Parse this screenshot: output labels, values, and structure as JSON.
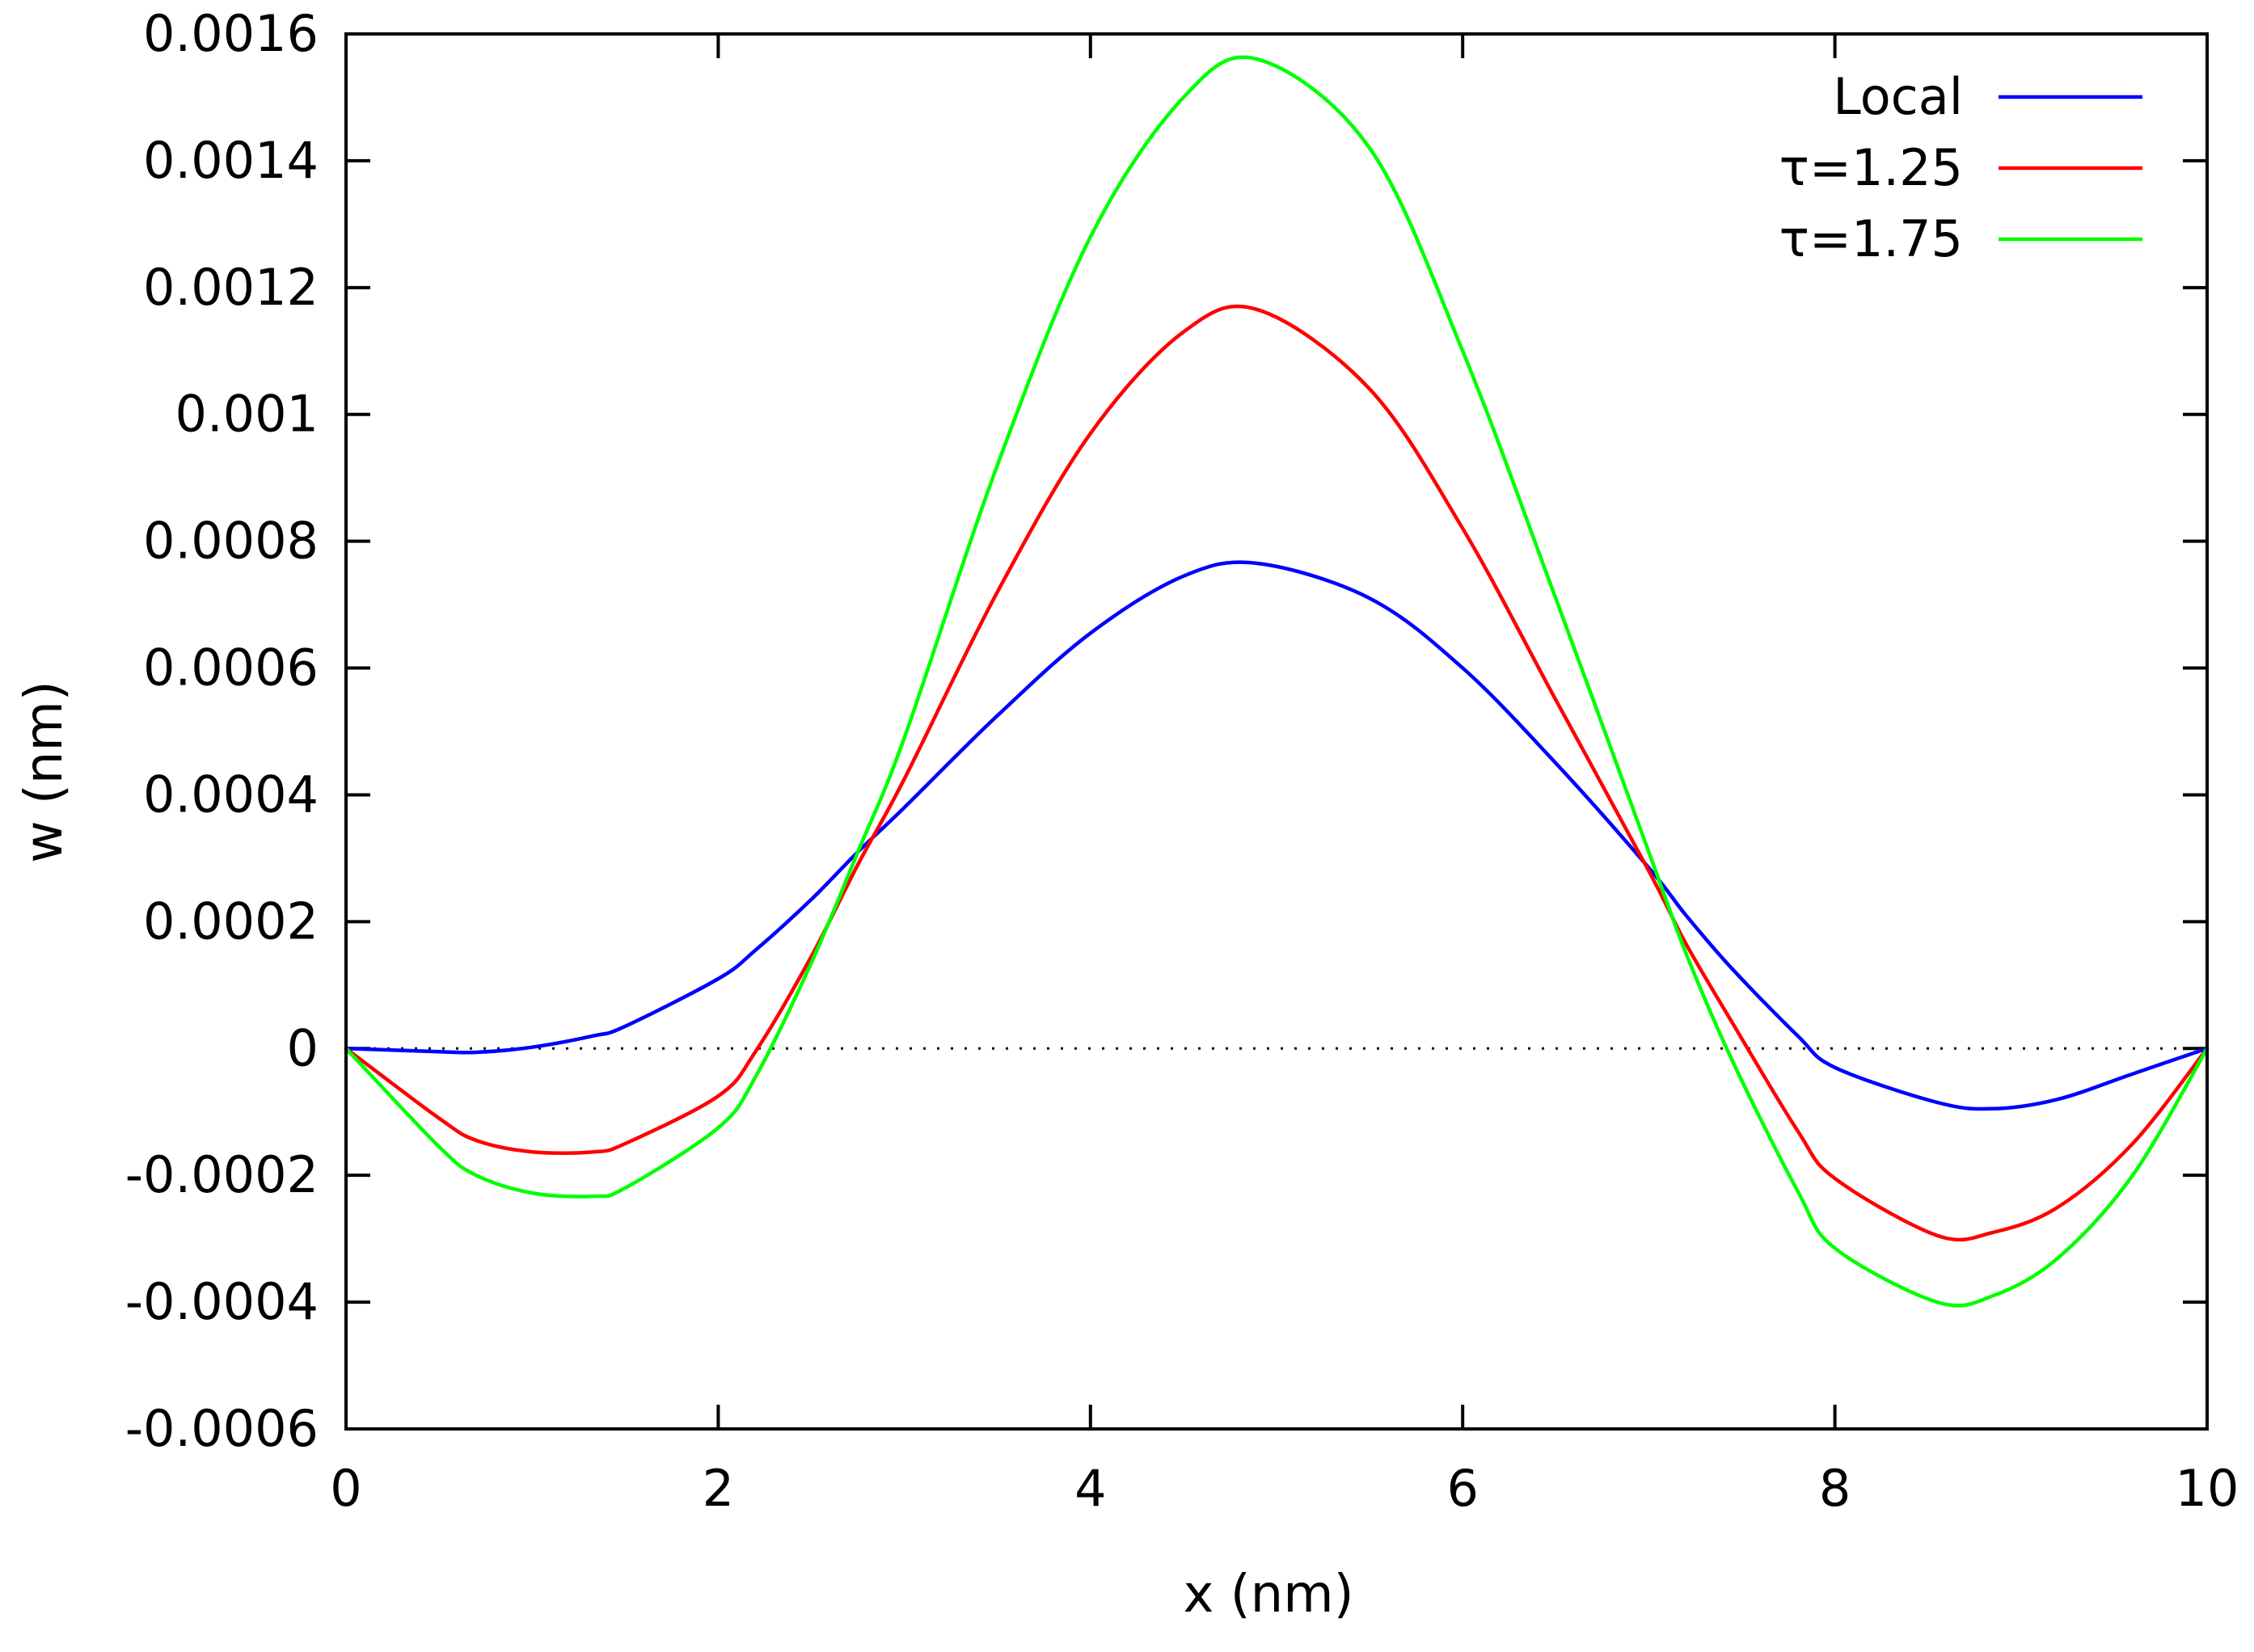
{
  "chart_data": {
    "type": "line",
    "title": "",
    "xlabel": "x (nm)",
    "ylabel": "w (nm)",
    "xlim": [
      0,
      10
    ],
    "ylim": [
      -0.0006,
      0.0016
    ],
    "xticks": [
      0,
      2,
      4,
      6,
      8,
      10
    ],
    "xtick_labels": [
      "0",
      "2",
      "4",
      "6",
      "8",
      "10"
    ],
    "yticks": [
      -0.0006,
      -0.0004,
      -0.0002,
      0,
      0.0002,
      0.0004,
      0.0006,
      0.0008,
      0.001,
      0.0012,
      0.0014,
      0.0016
    ],
    "ytick_labels": [
      "-0.0006",
      "-0.0004",
      "-0.0002",
      "0",
      "0.0002",
      "0.0004",
      "0.0006",
      "0.0008",
      "0.001",
      "0.0012",
      "0.0014",
      "0.0016"
    ],
    "zero_line": "dotted",
    "grid": false,
    "legend_position": "top-right",
    "x": [
      0,
      0.5,
      0.7,
      1,
      1.33,
      1.5,
      2,
      2.2,
      2.5,
      2.75,
      3,
      3.5,
      4,
      4.5,
      4.9,
      5.5,
      6,
      6.5,
      7,
      7.2,
      7.45,
      7.8,
      8,
      8.55,
      8.85,
      9.2,
      9.6,
      10
    ],
    "series": [
      {
        "name": "Local",
        "color": "#0000ff",
        "values": [
          0,
          -5e-06,
          -6e-06,
          2e-06,
          2e-05,
          3.5e-05,
          0.00011,
          0.000155,
          0.000235,
          0.00031,
          0.00038,
          0.000525,
          0.000655,
          0.000745,
          0.000765,
          0.00071,
          0.0006,
          0.00045,
          0.000285,
          0.00021,
          0.000125,
          2e-05,
          -3e-05,
          -8.5e-05,
          -9.5e-05,
          -8e-05,
          -4e-05,
          0
        ]
      },
      {
        "name": "τ=1.25",
        "color": "#ff0000",
        "values": [
          0,
          -0.00011,
          -0.000145,
          -0.000163,
          -0.000163,
          -0.00015,
          -7.5e-05,
          -5e-06,
          0.000145,
          0.00029,
          0.000425,
          0.00072,
          0.00097,
          0.00113,
          0.001165,
          0.00104,
          0.00082,
          0.00055,
          0.00028,
          0.000165,
          4e-05,
          -0.00013,
          -0.000205,
          -0.000295,
          -0.00029,
          -0.00025,
          -0.00015,
          0
        ]
      },
      {
        "name": "τ=1.75",
        "color": "#00ff00",
        "values": [
          0,
          -0.000155,
          -0.0002,
          -0.000228,
          -0.000233,
          -0.00022,
          -0.000125,
          -4.5e-05,
          0.000135,
          0.00031,
          0.00049,
          0.00092,
          0.00128,
          0.0015,
          0.00156,
          0.00142,
          0.0011,
          0.00071,
          0.00031,
          0.00015,
          -2e-05,
          -0.000225,
          -0.000315,
          -0.0004,
          -0.00039,
          -0.00033,
          -0.0002,
          0
        ]
      }
    ]
  }
}
